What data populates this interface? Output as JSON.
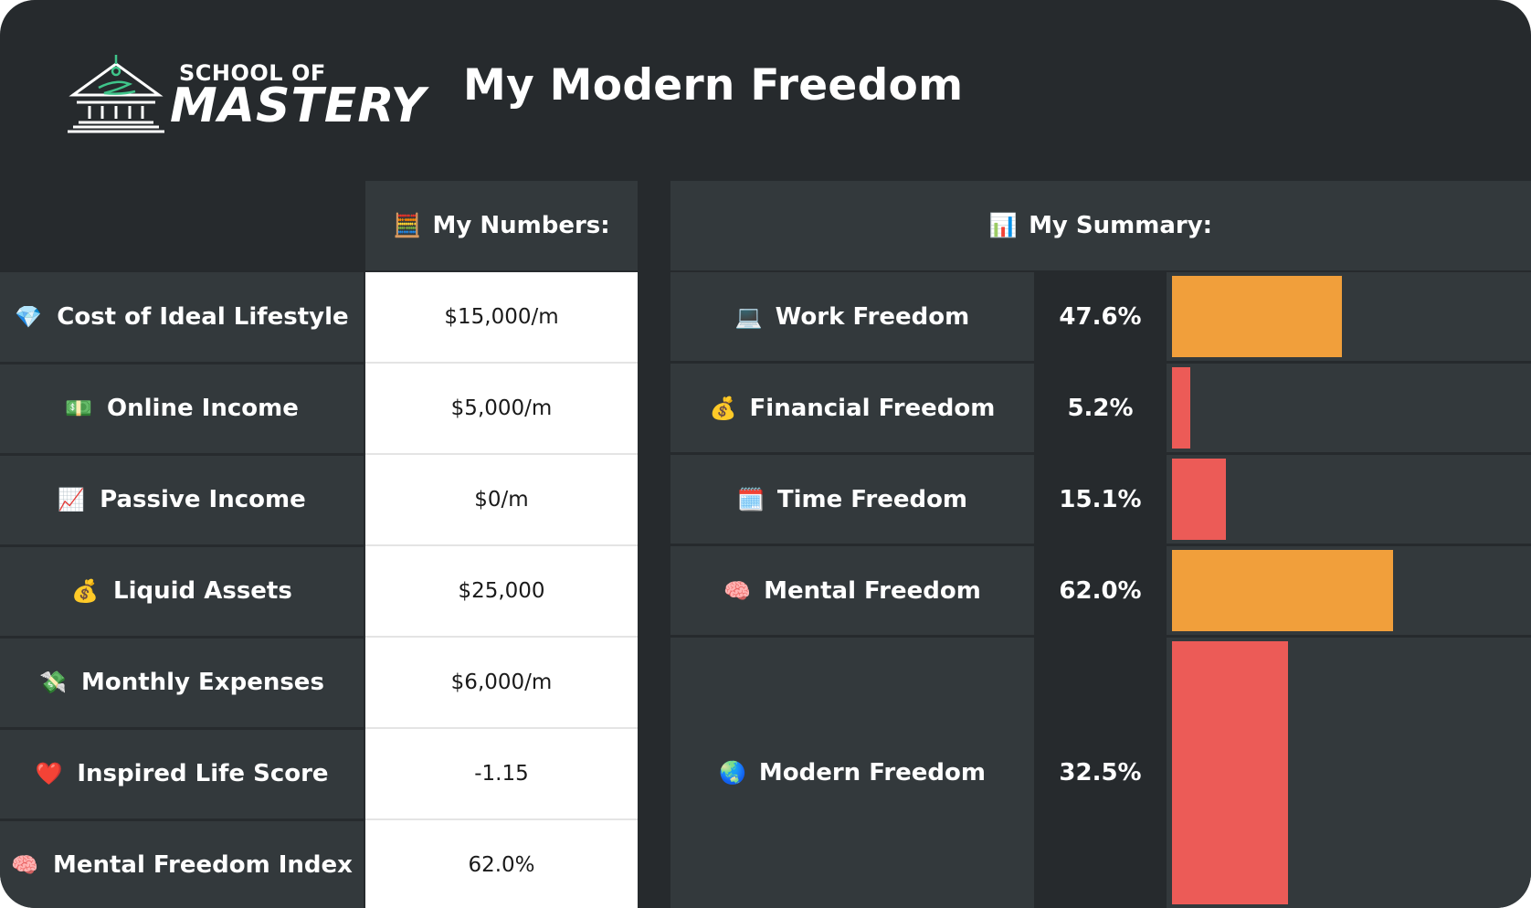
{
  "header": {
    "logo_line1": "SCHOOL OF",
    "logo_line2": "MASTERY",
    "title": "My Modern Freedom"
  },
  "numbers": {
    "heading": "My Numbers:",
    "heading_icon": "abacus-icon",
    "rows": [
      {
        "label": "Cost of Ideal Lifestyle",
        "icon": "gem-icon",
        "glyph": "💎",
        "value": "$15,000/m"
      },
      {
        "label": "Online Income",
        "icon": "dollar-banknote-icon",
        "glyph": "💵",
        "value": "$5,000/m"
      },
      {
        "label": "Passive Income",
        "icon": "chart-increasing-icon",
        "glyph": "📈",
        "value": "$0/m"
      },
      {
        "label": "Liquid Assets",
        "icon": "money-bag-icon",
        "glyph": "💰",
        "value": "$25,000"
      },
      {
        "label": "Monthly Expenses",
        "icon": "money-with-wings-icon",
        "glyph": "💸",
        "value": "$6,000/m"
      },
      {
        "label": "Inspired Life Score",
        "icon": "heart-icon",
        "glyph": "❤️",
        "value": "-1.15"
      },
      {
        "label": "Mental Freedom Index",
        "icon": "brain-icon",
        "glyph": "🧠",
        "value": "62.0%"
      }
    ]
  },
  "summary": {
    "heading": "My Summary:",
    "heading_icon": "bar-chart-icon",
    "rows": [
      {
        "label": "Work Freedom",
        "icon": "laptop-icon",
        "glyph": "💻",
        "percent": "47.6%",
        "value": 47.6,
        "color": "#f19f3b"
      },
      {
        "label": "Financial Freedom",
        "icon": "money-bag-icon",
        "glyph": "💰",
        "percent": "5.2%",
        "value": 5.2,
        "color": "#ec5b57"
      },
      {
        "label": "Time Freedom",
        "icon": "calendar-icon",
        "glyph": "🗓️",
        "percent": "15.1%",
        "value": 15.1,
        "color": "#ec5b57"
      },
      {
        "label": "Mental Freedom",
        "icon": "brain-icon",
        "glyph": "🧠",
        "percent": "62.0%",
        "value": 62.0,
        "color": "#f19f3b"
      },
      {
        "label": "Modern Freedom",
        "icon": "globe-icon",
        "glyph": "🌏",
        "percent": "32.5%",
        "value": 32.5,
        "color": "#ec5b57"
      }
    ]
  }
}
